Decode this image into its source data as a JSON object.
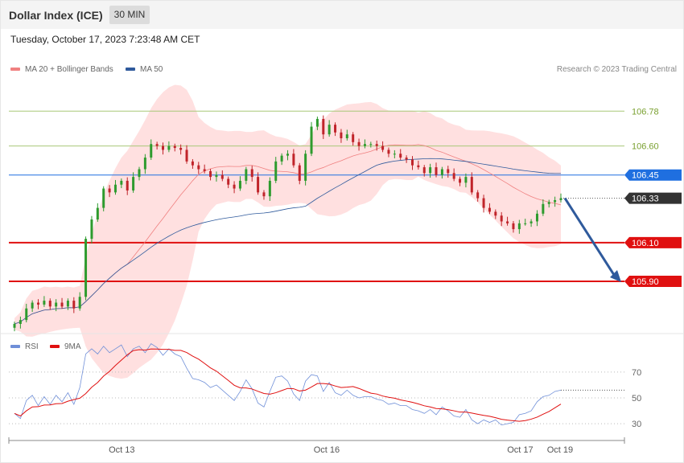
{
  "header": {
    "title": "Dollar Index (ICE)",
    "timeframe": "30 MIN"
  },
  "datetime": "Tuesday, October 17, 2023 7:23:48 AM CET",
  "legend": {
    "ma20_label": "MA 20 + Bollinger Bands",
    "ma50_label": "MA 50",
    "rsi_label": "RSI",
    "ma9_label": "9MA"
  },
  "credit": "Research © 2023 Trading Central",
  "colors": {
    "ma20": "#f08080",
    "ma50": "#2f5a9c",
    "band": "#ffd6d6",
    "up": "#2e9b2e",
    "down": "#c0242a",
    "resistance_line": "#a8c878",
    "pivot": "#1f6fe0",
    "support": "#e01010",
    "last_price": "#333333",
    "rsi": "#6f8fd8",
    "ma9": "#e01010",
    "arrow": "#2f5a9c"
  },
  "chart_data": [
    {
      "type": "candlestick",
      "x_tick_labels": [
        "Oct 13",
        "Oct 16",
        "Oct 17",
        "Oct 19"
      ],
      "ylim": [
        105.63,
        106.96
      ],
      "levels": [
        {
          "label": "106.78",
          "value": 106.78,
          "kind": "resistance"
        },
        {
          "label": "106.60",
          "value": 106.6,
          "kind": "resistance"
        },
        {
          "label": "106.45",
          "value": 106.45,
          "kind": "pivot"
        },
        {
          "label": "106.33",
          "value": 106.33,
          "kind": "last"
        },
        {
          "label": "106.10",
          "value": 106.1,
          "kind": "support"
        },
        {
          "label": "105.90",
          "value": 105.9,
          "kind": "support"
        }
      ],
      "close": [
        105.68,
        105.7,
        105.76,
        105.79,
        105.78,
        105.8,
        105.77,
        105.79,
        105.77,
        105.8,
        105.76,
        105.82,
        106.12,
        106.22,
        106.28,
        106.38,
        106.36,
        106.4,
        106.42,
        106.37,
        106.44,
        106.48,
        106.54,
        106.61,
        106.6,
        106.58,
        106.6,
        106.59,
        106.58,
        106.52,
        106.5,
        106.48,
        106.47,
        106.44,
        106.45,
        106.43,
        106.4,
        106.38,
        106.42,
        106.48,
        106.44,
        106.36,
        106.34,
        106.42,
        106.52,
        106.55,
        106.56,
        106.5,
        106.42,
        106.56,
        106.7,
        106.74,
        106.66,
        106.71,
        106.67,
        106.64,
        106.66,
        106.62,
        106.6,
        106.61,
        106.61,
        106.6,
        106.58,
        106.56,
        106.56,
        106.54,
        106.53,
        106.5,
        106.49,
        106.46,
        106.49,
        106.45,
        106.48,
        106.46,
        106.43,
        106.41,
        106.44,
        106.36,
        106.33,
        106.28,
        106.26,
        106.24,
        106.21,
        106.2,
        106.17,
        106.2,
        106.2,
        106.21,
        106.25,
        106.3,
        106.31,
        106.32,
        106.33
      ],
      "price_unit": "index points"
    },
    {
      "type": "line",
      "series": [
        {
          "name": "RSI"
        },
        {
          "name": "9MA"
        }
      ],
      "ylim": [
        22,
        78
      ],
      "y_ticks": [
        30,
        50,
        70
      ],
      "rsi": [
        38,
        34,
        48,
        52,
        44,
        51,
        45,
        52,
        47,
        54,
        45,
        58,
        84,
        88,
        84,
        90,
        85,
        88,
        91,
        82,
        88,
        90,
        85,
        92,
        89,
        83,
        88,
        84,
        82,
        73,
        65,
        64,
        62,
        58,
        60,
        56,
        52,
        48,
        55,
        64,
        57,
        46,
        43,
        55,
        66,
        67,
        63,
        53,
        48,
        63,
        68,
        67,
        55,
        62,
        54,
        52,
        56,
        52,
        50,
        51,
        51,
        49,
        48,
        45,
        46,
        44,
        44,
        41,
        40,
        38,
        41,
        37,
        43,
        40,
        36,
        35,
        41,
        33,
        30,
        33,
        31,
        33,
        29,
        30,
        31,
        37,
        38,
        40,
        47,
        51,
        52,
        55,
        56
      ]
    }
  ]
}
